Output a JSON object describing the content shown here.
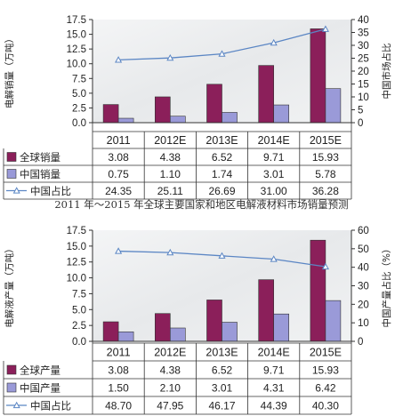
{
  "caption": "2011 年～2015 年全球主要国家和地区电解液材料市场销量预测",
  "colors": {
    "global": "#8b1f5a",
    "china": "#9a9ad8",
    "line": "#5b86c4",
    "text": "#222222"
  },
  "chart_data": [
    {
      "type": "bar",
      "categories": [
        "2011",
        "2012E",
        "2013E",
        "2014E",
        "2015E"
      ],
      "ylabel": "电解销量（万吨）",
      "ylabel_right": "中国市场占比",
      "ylim": [
        0,
        17.5
      ],
      "yticks": [
        "0.0",
        "2.5",
        "5.0",
        "7.5",
        "10.0",
        "12.5",
        "15.0",
        "17.5"
      ],
      "ylim_right": [
        0,
        40
      ],
      "yticks_right": [
        "0",
        "5",
        "10",
        "15",
        "20",
        "25",
        "30",
        "35",
        "40"
      ],
      "series": [
        {
          "name": "全球销量",
          "kind": "bar",
          "values": [
            3.08,
            4.38,
            6.52,
            9.71,
            15.93
          ],
          "labels": [
            "3.08",
            "4.38",
            "6.52",
            "9.71",
            "15.93"
          ]
        },
        {
          "name": "中国销量",
          "kind": "bar",
          "values": [
            0.75,
            1.1,
            1.74,
            3.01,
            5.78
          ],
          "labels": [
            "0.75",
            "1.10",
            "1.74",
            "3.01",
            "5.78"
          ]
        },
        {
          "name": "中国占比",
          "kind": "line",
          "axis": "right",
          "values": [
            24.35,
            25.11,
            26.69,
            31.0,
            36.28
          ],
          "labels": [
            "24.35",
            "25.11",
            "26.69",
            "31.00",
            "36.28"
          ]
        }
      ]
    },
    {
      "type": "bar",
      "categories": [
        "2011",
        "2012E",
        "2013E",
        "2014E",
        "2015E"
      ],
      "ylabel": "电解液产量（万吨）",
      "ylabel_right": "中国产量占比（%）",
      "ylim": [
        0,
        17.5
      ],
      "yticks": [
        "0.0",
        "2.5",
        "5.0",
        "7.5",
        "10.0",
        "12.5",
        "15.0",
        "17.5"
      ],
      "ylim_right": [
        0,
        60
      ],
      "yticks_right": [
        "0",
        "10",
        "20",
        "30",
        "40",
        "50",
        "60"
      ],
      "series": [
        {
          "name": "全球产量",
          "kind": "bar",
          "values": [
            3.08,
            4.38,
            6.52,
            9.71,
            15.93
          ],
          "labels": [
            "3.08",
            "4.38",
            "6.52",
            "9.71",
            "15.93"
          ]
        },
        {
          "name": "中国产量",
          "kind": "bar",
          "values": [
            1.5,
            2.1,
            3.01,
            4.31,
            6.42
          ],
          "labels": [
            "1.50",
            "2.10",
            "3.01",
            "4.31",
            "6.42"
          ]
        },
        {
          "name": "中国占比",
          "kind": "line",
          "axis": "right",
          "values": [
            48.7,
            47.95,
            46.17,
            44.39,
            40.3
          ],
          "labels": [
            "48.70",
            "47.95",
            "46.17",
            "44.39",
            "40.30"
          ]
        }
      ]
    }
  ]
}
